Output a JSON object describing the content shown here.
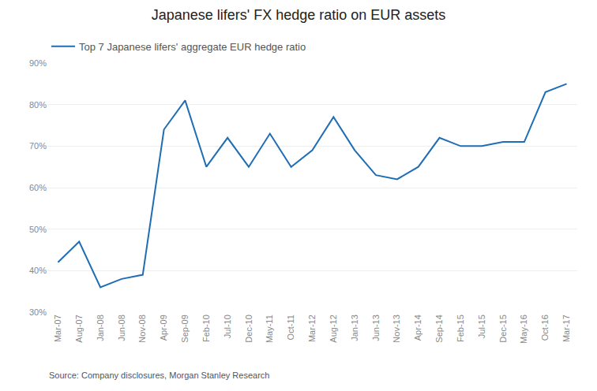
{
  "chart_data": {
    "type": "line",
    "title": "Japanese lifers' FX hedge ratio on EUR assets",
    "categories": [
      "Mar-07",
      "Aug-07",
      "Jan-08",
      "Jun-08",
      "Nov-08",
      "Apr-09",
      "Sep-09",
      "Feb-10",
      "Jul-10",
      "Dec-10",
      "May-11",
      "Oct-11",
      "Mar-12",
      "Aug-12",
      "Jan-13",
      "Jun-13",
      "Nov-13",
      "Apr-14",
      "Sep-14",
      "Feb-15",
      "Jul-15",
      "Dec-15",
      "May-16",
      "Oct-16",
      "Mar-17"
    ],
    "series": [
      {
        "name": "Top 7 Japanese lifers' aggregate EUR hedge ratio",
        "color": "#1f6eb5",
        "values": [
          42,
          47,
          36,
          38,
          39,
          74,
          81,
          65,
          72,
          65,
          73,
          65,
          69,
          77,
          69,
          63,
          62,
          65,
          72,
          70,
          70,
          71,
          71,
          83,
          85
        ]
      }
    ],
    "ylim": [
      30,
      90
    ],
    "yticks": [
      {
        "value": 30,
        "label": "30%"
      },
      {
        "value": 40,
        "label": "40%"
      },
      {
        "value": 50,
        "label": "50%"
      },
      {
        "value": 60,
        "label": "60%"
      },
      {
        "value": 70,
        "label": "70%"
      },
      {
        "value": 80,
        "label": "80%"
      },
      {
        "value": 90,
        "label": "90%"
      }
    ],
    "grid": true,
    "legend": "upper left",
    "annotations": [
      "Source: Company disclosures, Morgan Stanley Research"
    ]
  }
}
